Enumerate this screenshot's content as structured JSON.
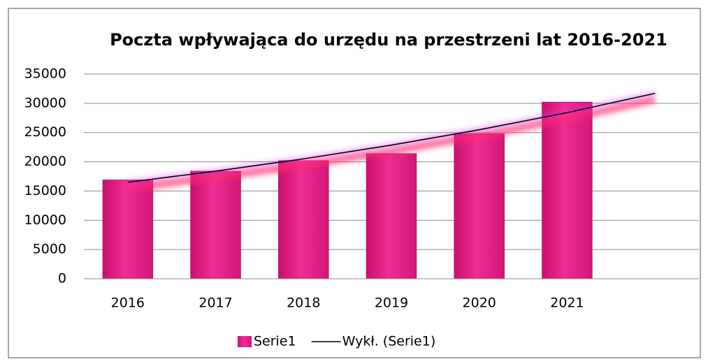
{
  "chart_data": {
    "type": "bar",
    "title": "Poczta wpływająca do urzędu na przestrzeni lat 2016-2021",
    "categories": [
      "2016",
      "2017",
      "2018",
      "2019",
      "2020",
      "2021",
      null
    ],
    "series": [
      {
        "name": "Serie1",
        "type": "bar",
        "color": "#e8208a",
        "values": [
          16900,
          18400,
          20200,
          21400,
          24800,
          30200,
          null
        ]
      },
      {
        "name": "Wykł. (Serie1)",
        "type": "line",
        "color": "#000000",
        "values": [
          16500,
          18400,
          20500,
          22850,
          25480,
          28400,
          31700
        ]
      }
    ],
    "ylim": [
      0,
      35000
    ],
    "yticks": [
      0,
      5000,
      10000,
      15000,
      20000,
      25000,
      30000,
      35000
    ],
    "grid": true,
    "legend": "bottom"
  }
}
